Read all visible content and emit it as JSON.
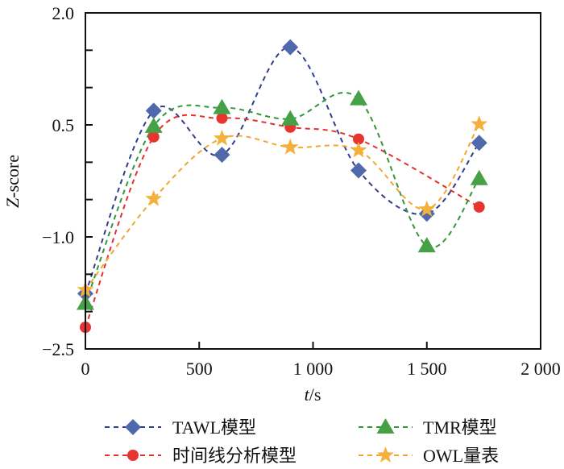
{
  "chart_data": {
    "type": "line",
    "title": "",
    "xlabel": "t/s",
    "xlabel_italic_part": "t",
    "xlabel_rest": "/s",
    "ylabel": "Z-score",
    "ylabel_italic_part": "Z",
    "ylabel_rest": "-score",
    "xlim": [
      0,
      2000
    ],
    "ylim": [
      -2.5,
      2.0
    ],
    "x_ticks": [
      0,
      500,
      1000,
      1500,
      2000
    ],
    "x_tick_labels": [
      "0",
      "500",
      "1 000",
      "1 500",
      "2 000"
    ],
    "y_ticks": [
      2.0,
      1.5,
      1.0,
      0.5,
      0.0,
      -0.5,
      -1.0,
      -1.5,
      -2.0,
      -2.5
    ],
    "y_tick_labels": [
      {
        "value": 2.0,
        "label": "2.0"
      },
      {
        "value": 0.5,
        "label": "0.5"
      },
      {
        "value": -1.0,
        "label": "−1.0"
      },
      {
        "value": -2.5,
        "label": "−2.5"
      }
    ],
    "grid": false,
    "legend_position": "bottom",
    "series": [
      {
        "name": "TAWL模型",
        "marker": "diamond",
        "line_color": "#2E3D8C",
        "marker_color": "#4F69AC",
        "x": [
          0,
          300,
          600,
          900,
          1200,
          1500,
          1730
        ],
        "y": [
          -1.76,
          0.69,
          0.1,
          1.54,
          -0.11,
          -0.69,
          0.26
        ]
      },
      {
        "name": "时间线分析模型",
        "marker": "circle",
        "line_color": "#E3302C",
        "marker_color": "#E6342E",
        "x": [
          0,
          300,
          600,
          900,
          1200,
          1730
        ],
        "y": [
          -2.21,
          0.34,
          0.59,
          0.47,
          0.31,
          -0.6
        ]
      },
      {
        "name": "TMR模型",
        "marker": "triangle",
        "line_color": "#33963A",
        "marker_color": "#46A046",
        "x": [
          0,
          300,
          600,
          900,
          1200,
          1500,
          1730
        ],
        "y": [
          -1.89,
          0.48,
          0.73,
          0.58,
          0.85,
          -1.12,
          -0.22
        ]
      },
      {
        "name": "OWL量表",
        "marker": "star",
        "line_color": "#F2A630",
        "marker_color": "#F4B03C",
        "x": [
          0,
          300,
          600,
          900,
          1200,
          1500,
          1730
        ],
        "y": [
          -1.71,
          -0.49,
          0.32,
          0.2,
          0.16,
          -0.63,
          0.51
        ]
      }
    ]
  }
}
